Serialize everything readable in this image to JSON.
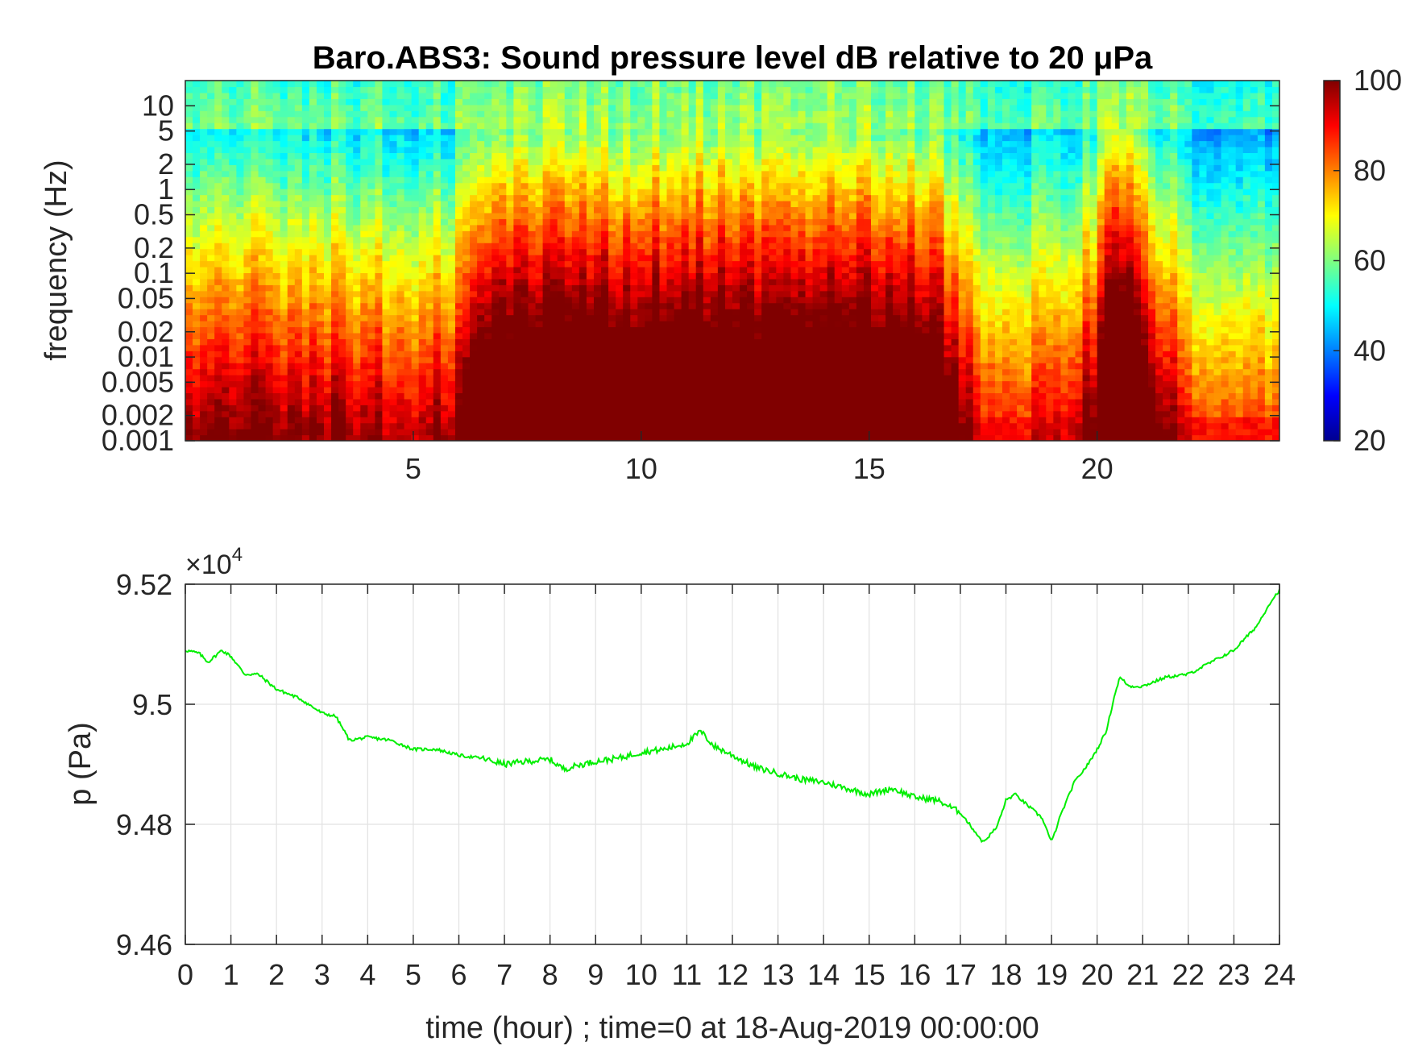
{
  "chart_data": [
    {
      "type": "heatmap",
      "title": "Baro.ABS3: Sound pressure level dB relative to 20 μPa",
      "ylabel": "frequency (Hz)",
      "xlabel": "",
      "x_range_hours": [
        0,
        24
      ],
      "x_ticks": [
        "5",
        "10",
        "15",
        "20"
      ],
      "y_scale": "log",
      "y_ticks": [
        "0.001",
        "0.002",
        "0.005",
        "0.01",
        "0.02",
        "0.05",
        "0.1",
        "0.2",
        "0.5",
        "1",
        "2",
        "5",
        "10"
      ],
      "y_range": [
        0.001,
        20
      ],
      "colorbar": {
        "ticks": [
          "20",
          "40",
          "60",
          "80",
          "100"
        ],
        "range": [
          20,
          100
        ],
        "colormap": "jet"
      },
      "activity_envelope": {
        "x": [
          0,
          1,
          2,
          3,
          4,
          5,
          6,
          6.5,
          7,
          8,
          9,
          10,
          11,
          12,
          13,
          14,
          15,
          16,
          16.5,
          17,
          17.5,
          18,
          19,
          19.5,
          20,
          20.3,
          20.6,
          21,
          21.5,
          22,
          23,
          24
        ],
        "level": [
          0.45,
          0.5,
          0.48,
          0.5,
          0.45,
          0.42,
          0.5,
          0.8,
          0.85,
          0.82,
          0.85,
          0.84,
          0.86,
          0.85,
          0.84,
          0.83,
          0.84,
          0.82,
          0.75,
          0.55,
          0.35,
          0.35,
          0.35,
          0.45,
          0.55,
          0.95,
          0.98,
          0.7,
          0.5,
          0.35,
          0.3,
          0.3
        ]
      }
    },
    {
      "type": "line",
      "xlabel": "time (hour) ; time=0 at 18-Aug-2019 00:00:00",
      "ylabel": "p (Pa)",
      "y_multiplier": "×10",
      "y_multiplier_exp": "4",
      "ylim": [
        94600,
        95200
      ],
      "xlim": [
        0,
        24
      ],
      "y_ticks": [
        "9.46",
        "9.48",
        "9.5",
        "9.52"
      ],
      "x_ticks": [
        "0",
        "1",
        "2",
        "3",
        "4",
        "5",
        "6",
        "7",
        "8",
        "9",
        "10",
        "11",
        "12",
        "13",
        "14",
        "15",
        "16",
        "17",
        "18",
        "19",
        "20",
        "21",
        "22",
        "23",
        "24"
      ],
      "grid": true,
      "series": [
        {
          "color": "#00ee00",
          "x": [
            0,
            0.3,
            0.5,
            0.8,
            1.0,
            1.3,
            1.6,
            2.0,
            2.5,
            3.0,
            3.3,
            3.6,
            4.0,
            4.5,
            5.0,
            5.5,
            6.0,
            6.5,
            7.0,
            7.5,
            8.0,
            8.3,
            8.6,
            9.0,
            9.5,
            10.0,
            10.5,
            11.0,
            11.3,
            11.6,
            12.0,
            12.5,
            13.0,
            13.5,
            14.0,
            14.5,
            15.0,
            15.5,
            16.0,
            16.5,
            17.0,
            17.3,
            17.5,
            17.8,
            18.0,
            18.2,
            18.5,
            18.8,
            19.0,
            19.2,
            19.5,
            19.8,
            20.0,
            20.2,
            20.4,
            20.5,
            20.7,
            21.0,
            21.5,
            22.0,
            22.5,
            23.0,
            23.5,
            23.8,
            24.0
          ],
          "y": [
            95090,
            95085,
            95070,
            95090,
            95080,
            95050,
            95050,
            95025,
            95010,
            94985,
            94980,
            94940,
            94945,
            94940,
            94925,
            94925,
            94915,
            94910,
            94900,
            94905,
            94908,
            94892,
            94898,
            94905,
            94910,
            94920,
            94925,
            94935,
            94955,
            94930,
            94915,
            94895,
            94885,
            94875,
            94870,
            94860,
            94850,
            94860,
            94845,
            94840,
            94820,
            94790,
            94770,
            94795,
            94840,
            94850,
            94830,
            94810,
            94770,
            94815,
            94870,
            94900,
            94925,
            94955,
            95020,
            95045,
            95030,
            95030,
            95045,
            95050,
            95070,
            95090,
            95130,
            95170,
            95190
          ]
        }
      ]
    }
  ]
}
